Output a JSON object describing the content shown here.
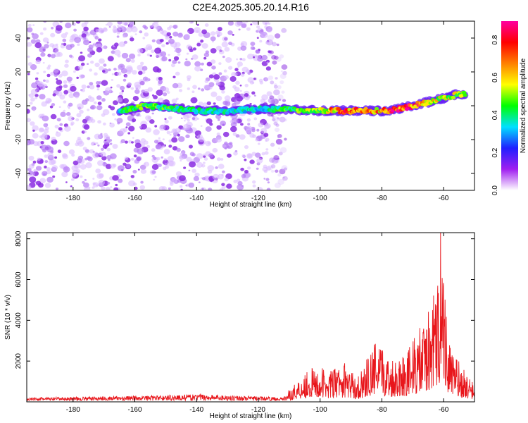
{
  "title": "C2E4.2025.305.20.14.R16",
  "chart_data": [
    {
      "type": "heatmap",
      "name": "spectrogram",
      "xlabel": "Height of straight line (km)",
      "ylabel": "Frequency (Hz)",
      "xlim": [
        -195,
        -50
      ],
      "ylim": [
        -50,
        50
      ],
      "xticks": [
        -180,
        -160,
        -140,
        -120,
        -100,
        -80,
        -60
      ],
      "yticks": [
        -40,
        -20,
        0,
        20,
        40
      ],
      "noise_region_x": [
        -195,
        -113
      ],
      "ridge": [
        {
          "x": -165,
          "y": -3,
          "amp": 0.35
        },
        {
          "x": -156,
          "y": 0,
          "amp": 0.45
        },
        {
          "x": -140,
          "y": -3,
          "amp": 0.35
        },
        {
          "x": -130,
          "y": -3,
          "amp": 0.3
        },
        {
          "x": -120,
          "y": -2,
          "amp": 0.3
        },
        {
          "x": -112,
          "y": -2,
          "amp": 0.4
        },
        {
          "x": -100,
          "y": -3,
          "amp": 0.55
        },
        {
          "x": -93,
          "y": -3,
          "amp": 0.85
        },
        {
          "x": -85,
          "y": -3,
          "amp": 0.65
        },
        {
          "x": -78,
          "y": -3,
          "amp": 0.85
        },
        {
          "x": -70,
          "y": 0,
          "amp": 0.9
        },
        {
          "x": -63,
          "y": 3,
          "amp": 0.6
        },
        {
          "x": -55,
          "y": 7,
          "amp": 0.5
        }
      ],
      "colorbar": {
        "label": "Normalized spectral amplitude",
        "range": [
          0,
          0.9
        ],
        "ticks": [
          "0.0",
          "0.2",
          "0.4",
          "0.6",
          "0.8"
        ],
        "colors": [
          "#ffffff",
          "#a020f0",
          "#2020ff",
          "#00e0ff",
          "#00ff00",
          "#ffff00",
          "#ff8000",
          "#ff0000",
          "#ff00a0"
        ]
      }
    },
    {
      "type": "line",
      "name": "snr",
      "xlabel": "Height of straight line (km)",
      "ylabel": "SNR (10 * v/v)",
      "xlim": [
        -195,
        -50
      ],
      "ylim": [
        0,
        8300
      ],
      "xticks": [
        -180,
        -160,
        -140,
        -120,
        -100,
        -80,
        -60
      ],
      "yticks": [
        2000,
        4000,
        6000,
        8000
      ],
      "color": "#e8161b",
      "envelope": [
        {
          "x": -195,
          "y": 200
        },
        {
          "x": -156,
          "y": 350
        },
        {
          "x": -138,
          "y": 450
        },
        {
          "x": -112,
          "y": 220
        },
        {
          "x": -104,
          "y": 1600
        },
        {
          "x": -96,
          "y": 1500
        },
        {
          "x": -92,
          "y": 1800
        },
        {
          "x": -88,
          "y": 1100
        },
        {
          "x": -82,
          "y": 2800
        },
        {
          "x": -77,
          "y": 2000
        },
        {
          "x": -72,
          "y": 2400
        },
        {
          "x": -66,
          "y": 3800
        },
        {
          "x": -62,
          "y": 5500
        },
        {
          "x": -61,
          "y": 8300
        },
        {
          "x": -58,
          "y": 2600
        },
        {
          "x": -54,
          "y": 1600
        },
        {
          "x": -50,
          "y": 800
        }
      ]
    }
  ]
}
